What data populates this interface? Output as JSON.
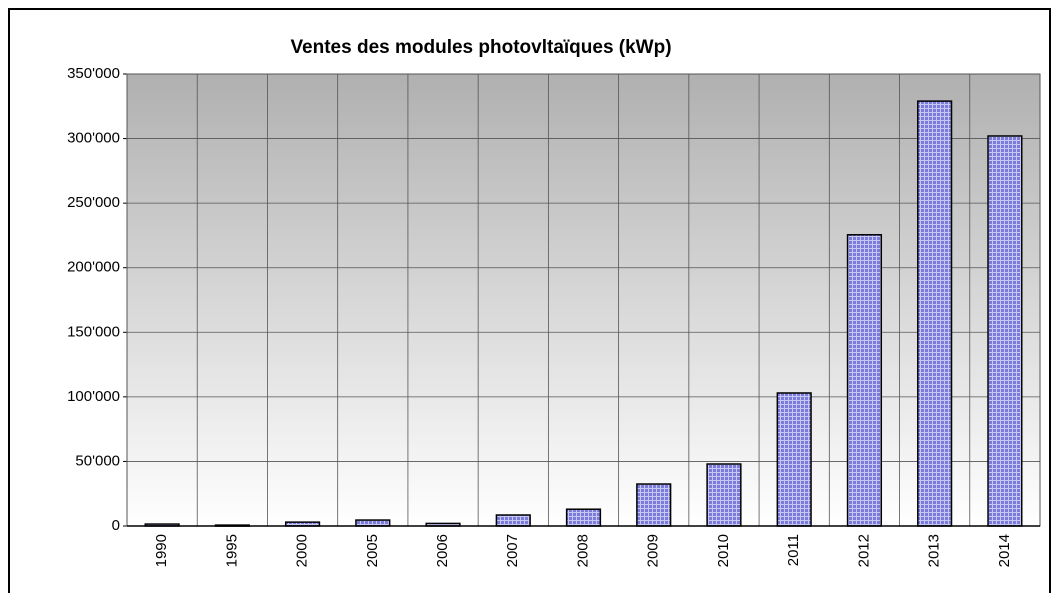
{
  "chart_data": {
    "type": "bar",
    "title": "Ventes des modules photovltaïques (kWp)",
    "categories": [
      "1990",
      "1995",
      "2000",
      "2005",
      "2006",
      "2007",
      "2008",
      "2009",
      "2010",
      "2011",
      "2012",
      "2013",
      "2014"
    ],
    "values": [
      1500,
      700,
      3000,
      4600,
      2000,
      8500,
      13000,
      32500,
      48000,
      103000,
      225500,
      329000,
      302000
    ],
    "color": "#7b7bdc",
    "ylim": [
      0,
      350000
    ],
    "yticks": [
      0,
      {
        "value": 50000,
        "label": "50'000"
      },
      {
        "value": 100000,
        "label": "100'000"
      },
      {
        "value": 150000,
        "label": "150'000"
      },
      {
        "value": 200000,
        "label": "200'000"
      },
      {
        "value": 250000,
        "label": "250'000"
      },
      {
        "value": 300000,
        "label": "300'000"
      },
      {
        "value": 350000,
        "label": "350'000"
      }
    ],
    "grid": true
  }
}
